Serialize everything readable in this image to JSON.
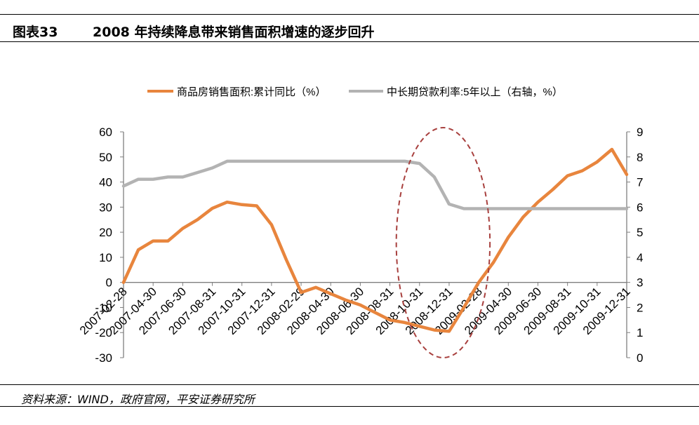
{
  "header": {
    "figure_label": "图表33",
    "title": "2008 年持续降息带来销售面积增速的逐步回升"
  },
  "footer": {
    "source": "资料来源：WIND，政府官网，平安证券研究所"
  },
  "chart_data": {
    "type": "line",
    "legend_position": "top",
    "grid": false,
    "x_tick_labels": [
      "2007-02-28",
      "2007-04-30",
      "2007-06-30",
      "2007-08-31",
      "2007-10-31",
      "2007-12-31",
      "2008-02-29",
      "2008-04-30",
      "2008-06-30",
      "2008-08-31",
      "2008-10-31",
      "2008-12-31",
      "2009-02-28",
      "2009-04-30",
      "2009-06-30",
      "2009-08-31",
      "2009-10-31",
      "2009-12-31"
    ],
    "left_axis": {
      "ylim": [
        -30,
        60
      ],
      "ticks": [
        -30,
        -20,
        -10,
        0,
        10,
        20,
        30,
        40,
        50,
        60
      ]
    },
    "right_axis": {
      "ylim": [
        0,
        9
      ],
      "ticks": [
        0,
        1,
        2,
        3,
        4,
        5,
        6,
        7,
        8,
        9
      ]
    },
    "x": [
      "2007-02",
      "2007-03",
      "2007-04",
      "2007-05",
      "2007-06",
      "2007-07",
      "2007-08",
      "2007-09",
      "2007-10",
      "2007-11",
      "2007-12",
      "2008-01",
      "2008-02",
      "2008-03",
      "2008-04",
      "2008-05",
      "2008-06",
      "2008-07",
      "2008-08",
      "2008-09",
      "2008-10",
      "2008-11",
      "2008-12",
      "2009-01",
      "2009-02",
      "2009-03",
      "2009-04",
      "2009-05",
      "2009-06",
      "2009-07",
      "2009-08",
      "2009-09",
      "2009-10",
      "2009-11",
      "2009-12"
    ],
    "series": [
      {
        "name": "商品房销售面积:累计同比（%）",
        "axis": "left",
        "color": "#E8853D",
        "values": [
          0,
          13,
          16.5,
          16.5,
          21.5,
          25,
          29.5,
          32,
          31,
          30.5,
          23,
          9,
          -4,
          -2,
          -4.5,
          -7,
          -9,
          -12,
          -15,
          -16,
          -17.5,
          -19,
          -19.5,
          -10,
          0,
          8,
          18,
          26,
          32,
          37,
          42.5,
          44.5,
          48,
          53,
          43
        ]
      },
      {
        "name": "中长期贷款利率:5年以上（右轴，%）",
        "axis": "right",
        "color": "#B3B3B3",
        "values": [
          6.84,
          7.11,
          7.11,
          7.2,
          7.2,
          7.38,
          7.56,
          7.83,
          7.83,
          7.83,
          7.83,
          7.83,
          7.83,
          7.83,
          7.83,
          7.83,
          7.83,
          7.83,
          7.83,
          7.83,
          7.74,
          7.2,
          6.12,
          5.94,
          5.94,
          5.94,
          5.94,
          5.94,
          5.94,
          5.94,
          5.94,
          5.94,
          5.94,
          5.94,
          5.94
        ]
      }
    ],
    "annotation": {
      "type": "dashed-ellipse",
      "color": "#A8403E",
      "x_from": "2008-09",
      "x_to": "2009-02"
    }
  }
}
